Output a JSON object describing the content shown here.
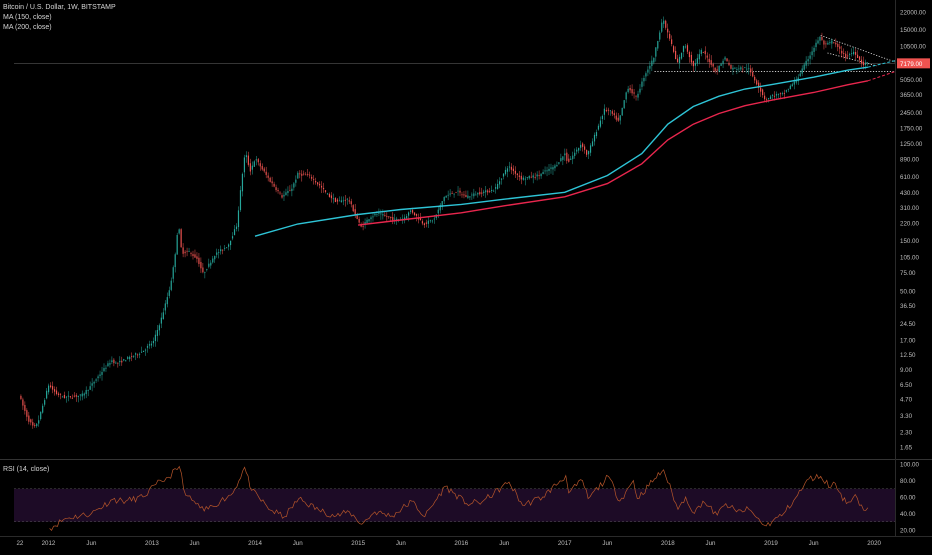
{
  "header": {
    "symbol_title": "Bitcoin / U.S. Dollar, 1W, BITSTAMP",
    "ma150_label": "MA (150, close)",
    "ma200_label": "MA (200, close)"
  },
  "rsi_panel": {
    "label": "RSI (14, close)",
    "upper_band": 70,
    "lower_band": 30,
    "band_color": "#1d0b26",
    "line_color": "#b6552a",
    "y_ticks": [
      "100.00",
      "80.00",
      "60.00",
      "40.00",
      "20.00"
    ],
    "y_tick_values": [
      100,
      80,
      60,
      40,
      20
    ]
  },
  "colors": {
    "background": "#000000",
    "candle_up": "#26a69a",
    "candle_down": "#ef5350",
    "ma150": "#2ec4d6",
    "ma200": "#e8264d",
    "price_tag": "#ef5350"
  },
  "chart_data": {
    "type": "candlestick",
    "title": "Bitcoin / U.S. Dollar, 1W, BITSTAMP",
    "y_scale": "log",
    "ylim": [
      1.3,
      28000
    ],
    "x_range": [
      "2011-09-01",
      "2020-03-15"
    ],
    "x_tick_labels": [
      "22",
      "2012",
      "Jun",
      "2013",
      "Jun",
      "2014",
      "Jun",
      "2015",
      "Jun",
      "2016",
      "Jun",
      "2017",
      "Jun",
      "2018",
      "Jun",
      "2019",
      "Jun",
      "2020"
    ],
    "x_tick_dates": [
      "2011-09-22",
      "2012-01-01",
      "2012-06-01",
      "2013-01-01",
      "2013-06-01",
      "2014-01-01",
      "2014-06-01",
      "2015-01-01",
      "2015-06-01",
      "2016-01-01",
      "2016-06-01",
      "2017-01-01",
      "2017-06-01",
      "2018-01-01",
      "2018-06-01",
      "2019-01-01",
      "2019-06-01",
      "2020-01-01"
    ],
    "y_tick_labels": [
      "22000.00",
      "15000.00",
      "10500.00",
      "5050.00",
      "3650.00",
      "2450.00",
      "1750.00",
      "1250.00",
      "890.00",
      "610.00",
      "430.00",
      "310.00",
      "220.00",
      "150.00",
      "105.00",
      "75.00",
      "50.00",
      "36.50",
      "24.50",
      "17.00",
      "12.50",
      "9.00",
      "6.50",
      "4.70",
      "3.30",
      "2.30",
      "1.65"
    ],
    "y_tick_values": [
      22000,
      15000,
      10500,
      5050,
      3650,
      2450,
      1750,
      1250,
      890,
      610,
      430,
      310,
      220,
      150,
      105,
      75,
      50,
      36.5,
      24.5,
      17,
      12.5,
      9,
      6.5,
      4.7,
      3.3,
      2.3,
      1.65
    ],
    "last_price_label": "7179.00",
    "last_price": 7179,
    "price_path": [
      [
        "2011-09-22",
        5.2
      ],
      [
        "2011-10-10",
        3.8
      ],
      [
        "2011-10-25",
        3.0
      ],
      [
        "2011-11-15",
        2.5
      ],
      [
        "2011-12-01",
        3.0
      ],
      [
        "2012-01-05",
        6.4
      ],
      [
        "2012-02-01",
        5.3
      ],
      [
        "2012-03-01",
        4.9
      ],
      [
        "2012-05-01",
        5.1
      ],
      [
        "2012-06-01",
        6.2
      ],
      [
        "2012-07-15",
        8.8
      ],
      [
        "2012-08-15",
        11.0
      ],
      [
        "2012-09-01",
        10.2
      ],
      [
        "2012-10-15",
        11.6
      ],
      [
        "2012-12-01",
        13.3
      ],
      [
        "2013-01-10",
        16.5
      ],
      [
        "2013-02-10",
        29.0
      ],
      [
        "2013-03-10",
        55.0
      ],
      [
        "2013-03-25",
        95.0
      ],
      [
        "2013-04-08",
        220.0
      ],
      [
        "2013-04-20",
        115.0
      ],
      [
        "2013-05-15",
        118.0
      ],
      [
        "2013-06-15",
        100.0
      ],
      [
        "2013-07-05",
        72.0
      ],
      [
        "2013-08-15",
        110.0
      ],
      [
        "2013-10-01",
        135.0
      ],
      [
        "2013-11-01",
        210.0
      ],
      [
        "2013-11-20",
        620.0
      ],
      [
        "2013-12-01",
        1050.0
      ],
      [
        "2013-12-18",
        680.0
      ],
      [
        "2014-01-05",
        900.0
      ],
      [
        "2014-02-25",
        560.0
      ],
      [
        "2014-04-10",
        390.0
      ],
      [
        "2014-05-15",
        470.0
      ],
      [
        "2014-06-05",
        640.0
      ],
      [
        "2014-07-15",
        620.0
      ],
      [
        "2014-08-20",
        500.0
      ],
      [
        "2014-09-20",
        405.0
      ],
      [
        "2014-10-20",
        350.0
      ],
      [
        "2014-12-01",
        370.0
      ],
      [
        "2015-01-14",
        200.0
      ],
      [
        "2015-02-15",
        250.0
      ],
      [
        "2015-03-15",
        270.0
      ],
      [
        "2015-05-15",
        236.0
      ],
      [
        "2015-06-15",
        244.0
      ],
      [
        "2015-07-10",
        290.0
      ],
      [
        "2015-08-25",
        215.0
      ],
      [
        "2015-10-01",
        240.0
      ],
      [
        "2015-11-05",
        390.0
      ],
      [
        "2015-12-20",
        440.0
      ],
      [
        "2016-01-20",
        390.0
      ],
      [
        "2016-03-01",
        420.0
      ],
      [
        "2016-05-01",
        455.0
      ],
      [
        "2016-06-18",
        760.0
      ],
      [
        "2016-08-05",
        580.0
      ],
      [
        "2016-10-01",
        620.0
      ],
      [
        "2016-12-01",
        760.0
      ],
      [
        "2017-01-05",
        1000.0
      ],
      [
        "2017-01-15",
        820.0
      ],
      [
        "2017-03-05",
        1250.0
      ],
      [
        "2017-03-25",
        960.0
      ],
      [
        "2017-05-25",
        2600.0
      ],
      [
        "2017-06-15",
        2500.0
      ],
      [
        "2017-07-15",
        2000.0
      ],
      [
        "2017-08-15",
        4300.0
      ],
      [
        "2017-09-15",
        3400.0
      ],
      [
        "2017-10-15",
        5600.0
      ],
      [
        "2017-11-15",
        8000.0
      ],
      [
        "2017-12-17",
        19000.0
      ],
      [
        "2018-01-15",
        11500.0
      ],
      [
        "2018-02-06",
        7000.0
      ],
      [
        "2018-03-05",
        11000.0
      ],
      [
        "2018-04-05",
        6700.0
      ],
      [
        "2018-05-05",
        9600.0
      ],
      [
        "2018-06-25",
        6000.0
      ],
      [
        "2018-07-25",
        8200.0
      ],
      [
        "2018-08-15",
        6400.0
      ],
      [
        "2018-10-15",
        6500.0
      ],
      [
        "2018-11-20",
        4400.0
      ],
      [
        "2018-12-15",
        3250.0
      ],
      [
        "2019-01-15",
        3600.0
      ],
      [
        "2019-02-15",
        3650.0
      ],
      [
        "2019-04-05",
        5000.0
      ],
      [
        "2019-05-15",
        7900.0
      ],
      [
        "2019-06-26",
        12800.0
      ],
      [
        "2019-07-15",
        10500.0
      ],
      [
        "2019-08-10",
        11700.0
      ],
      [
        "2019-09-25",
        8300.0
      ],
      [
        "2019-10-26",
        9300.0
      ],
      [
        "2019-11-25",
        7000.0
      ],
      [
        "2019-12-10",
        7179.0
      ]
    ],
    "ma150_path": [
      [
        "2014-01-01",
        165
      ],
      [
        "2014-06-01",
        215
      ],
      [
        "2015-01-01",
        265
      ],
      [
        "2015-06-01",
        295
      ],
      [
        "2016-01-01",
        330
      ],
      [
        "2016-06-01",
        370
      ],
      [
        "2017-01-01",
        430
      ],
      [
        "2017-06-01",
        620
      ],
      [
        "2017-10-01",
        1000
      ],
      [
        "2018-01-01",
        1900
      ],
      [
        "2018-04-01",
        2800
      ],
      [
        "2018-07-01",
        3500
      ],
      [
        "2018-10-01",
        4100
      ],
      [
        "2019-01-01",
        4500
      ],
      [
        "2019-06-01",
        5300
      ],
      [
        "2019-10-01",
        6200
      ],
      [
        "2019-12-10",
        6600
      ]
    ],
    "ma200_path": [
      [
        "2015-01-01",
        210
      ],
      [
        "2015-06-01",
        235
      ],
      [
        "2016-01-01",
        275
      ],
      [
        "2016-06-01",
        320
      ],
      [
        "2017-01-01",
        390
      ],
      [
        "2017-06-01",
        520
      ],
      [
        "2017-10-01",
        800
      ],
      [
        "2018-01-01",
        1350
      ],
      [
        "2018-04-01",
        1900
      ],
      [
        "2018-07-01",
        2400
      ],
      [
        "2018-10-01",
        2850
      ],
      [
        "2019-01-01",
        3200
      ],
      [
        "2019-06-01",
        3800
      ],
      [
        "2019-10-01",
        4500
      ],
      [
        "2019-12-10",
        4900
      ]
    ],
    "ma150_extension_path": [
      [
        "2019-12-10",
        6600
      ],
      [
        "2020-03-15",
        7600
      ]
    ],
    "ma200_extension_path": [
      [
        "2019-12-10",
        4900
      ],
      [
        "2020-03-15",
        6000
      ]
    ],
    "horizontal_support": {
      "price": 6000,
      "from": "2017-11-15",
      "to": "2020-03-15"
    },
    "descending_wedge": {
      "upper": [
        [
          "2019-06-26",
          13200
        ],
        [
          "2020-03-15",
          7400
        ]
      ],
      "lower": [
        [
          "2019-07-20",
          9000
        ],
        [
          "2020-01-10",
          6800
        ]
      ]
    },
    "rsi_path": [
      [
        "2012-01-05",
        22
      ],
      [
        "2012-03-01",
        34
      ],
      [
        "2012-06-01",
        40
      ],
      [
        "2012-08-15",
        57
      ],
      [
        "2012-10-01",
        55
      ],
      [
        "2012-12-01",
        60
      ],
      [
        "2013-01-15",
        75
      ],
      [
        "2013-03-01",
        84
      ],
      [
        "2013-04-08",
        97
      ],
      [
        "2013-05-01",
        62
      ],
      [
        "2013-07-05",
        43
      ],
      [
        "2013-09-01",
        55
      ],
      [
        "2013-10-15",
        65
      ],
      [
        "2013-11-25",
        96
      ],
      [
        "2013-12-20",
        68
      ],
      [
        "2014-02-25",
        44
      ],
      [
        "2014-04-15",
        36
      ],
      [
        "2014-06-05",
        58
      ],
      [
        "2014-08-15",
        44
      ],
      [
        "2014-10-15",
        37
      ],
      [
        "2014-12-01",
        42
      ],
      [
        "2015-01-14",
        27
      ],
      [
        "2015-03-01",
        42
      ],
      [
        "2015-05-01",
        37
      ],
      [
        "2015-07-10",
        55
      ],
      [
        "2015-08-25",
        36
      ],
      [
        "2015-11-05",
        73
      ],
      [
        "2016-01-20",
        52
      ],
      [
        "2016-03-15",
        54
      ],
      [
        "2016-06-18",
        78
      ],
      [
        "2016-08-05",
        50
      ],
      [
        "2016-10-15",
        60
      ],
      [
        "2017-01-05",
        86
      ],
      [
        "2017-01-15",
        65
      ],
      [
        "2017-03-05",
        80
      ],
      [
        "2017-03-25",
        58
      ],
      [
        "2017-06-05",
        85
      ],
      [
        "2017-07-15",
        55
      ],
      [
        "2017-09-01",
        80
      ],
      [
        "2017-09-15",
        58
      ],
      [
        "2017-11-15",
        82
      ],
      [
        "2017-12-17",
        93
      ],
      [
        "2018-02-06",
        45
      ],
      [
        "2018-03-05",
        60
      ],
      [
        "2018-04-05",
        40
      ],
      [
        "2018-05-05",
        55
      ],
      [
        "2018-06-25",
        38
      ],
      [
        "2018-07-25",
        52
      ],
      [
        "2018-09-01",
        42
      ],
      [
        "2018-10-15",
        45
      ],
      [
        "2018-11-25",
        30
      ],
      [
        "2018-12-15",
        25
      ],
      [
        "2019-02-15",
        40
      ],
      [
        "2019-04-05",
        62
      ],
      [
        "2019-05-15",
        82
      ],
      [
        "2019-06-26",
        85
      ],
      [
        "2019-08-01",
        72
      ],
      [
        "2019-08-10",
        78
      ],
      [
        "2019-09-25",
        52
      ],
      [
        "2019-10-26",
        63
      ],
      [
        "2019-11-25",
        44
      ],
      [
        "2019-12-10",
        47
      ]
    ]
  }
}
